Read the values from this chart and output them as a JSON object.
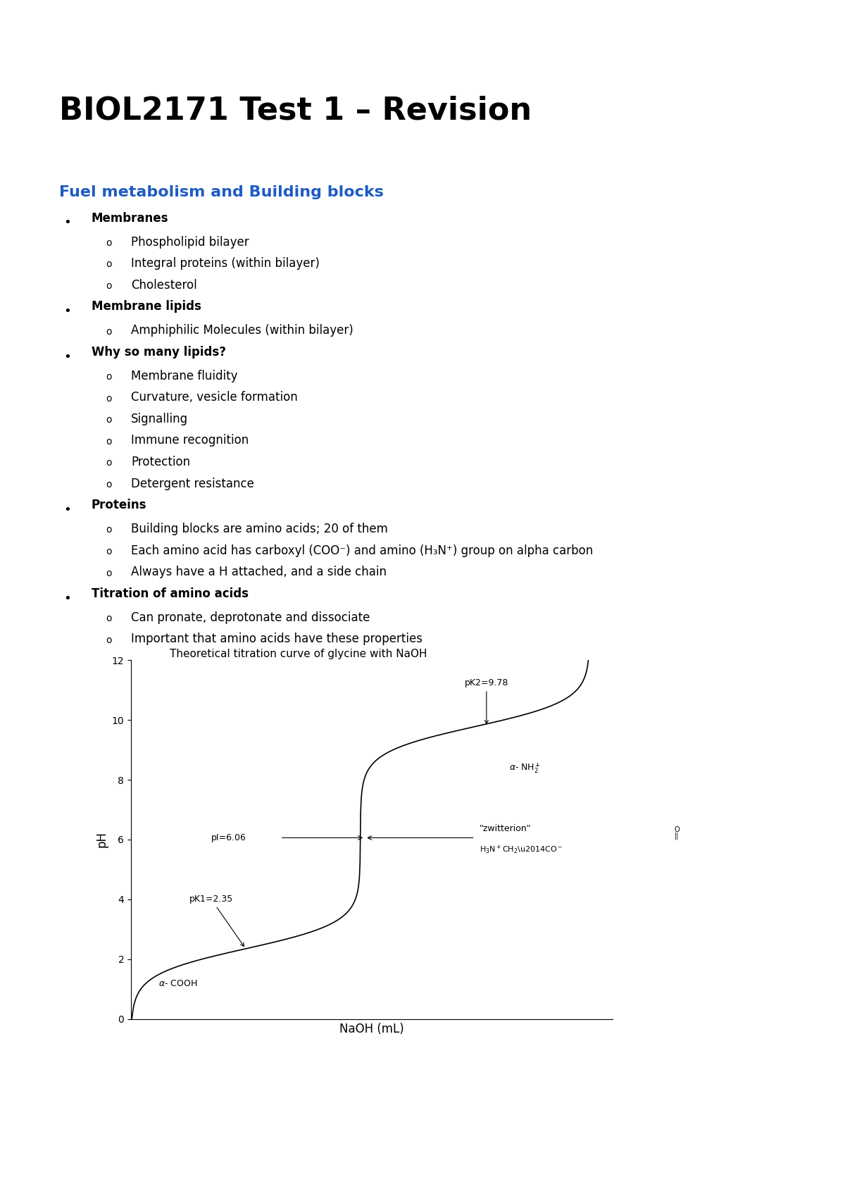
{
  "title": "BIOL2171 Test 1 – Revision",
  "subtitle": "Fuel metabolism and Building blocks",
  "subtitle_color": "#1F5BC4",
  "background_color": "#ffffff",
  "title_fontsize": 32,
  "subtitle_fontsize": 16,
  "body_fontsize": 12,
  "bullet_points": [
    {
      "level": 1,
      "text": "Membranes"
    },
    {
      "level": 2,
      "text": "Phospholipid bilayer"
    },
    {
      "level": 2,
      "text": "Integral proteins (within bilayer)"
    },
    {
      "level": 2,
      "text": "Cholesterol"
    },
    {
      "level": 1,
      "text": "Membrane lipids"
    },
    {
      "level": 2,
      "text": "Amphiphilic Molecules (within bilayer)"
    },
    {
      "level": 1,
      "text": "Why so many lipids?"
    },
    {
      "level": 2,
      "text": "Membrane fluidity"
    },
    {
      "level": 2,
      "text": "Curvature, vesicle formation"
    },
    {
      "level": 2,
      "text": "Signalling"
    },
    {
      "level": 2,
      "text": "Immune recognition"
    },
    {
      "level": 2,
      "text": "Protection"
    },
    {
      "level": 2,
      "text": "Detergent resistance"
    },
    {
      "level": 1,
      "text": "Proteins"
    },
    {
      "level": 2,
      "text": "Building blocks are amino acids; 20 of them"
    },
    {
      "level": 2,
      "text": "Each amino acid has carboxyl (COO⁻) and amino (H₃N⁺) group on alpha carbon"
    },
    {
      "level": 2,
      "text": "Always have a H attached, and a side chain"
    },
    {
      "level": 1,
      "text": "Titration of amino acids"
    },
    {
      "level": 2,
      "text": "Can pronate, deprotonate and dissociate"
    },
    {
      "level": 2,
      "text": "Important that amino acids have these properties"
    }
  ],
  "plot_title": "Theoretical titration curve of glycine with NaOH",
  "plot_xlabel": "NaOH (mL)",
  "plot_ylabel": "pH",
  "pK1": 2.35,
  "pK2": 9.78,
  "pI": 6.06
}
